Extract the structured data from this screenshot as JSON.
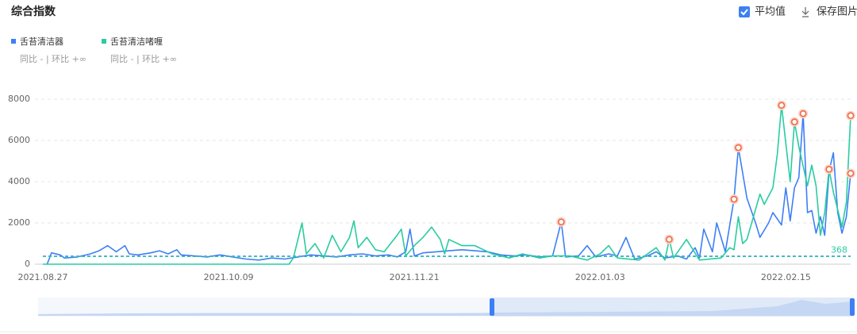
{
  "header": {
    "title": "综合指数",
    "average_toggle": "平均值",
    "save": "保存图片"
  },
  "chart_data": {
    "type": "line",
    "xlim": [
      "2021.08.27",
      "2022.03.02"
    ],
    "xticks": [
      "2021.08.27",
      "2021.10.09",
      "2021.11.21",
      "2022.01.03",
      "2022.02.15"
    ],
    "ylim": [
      0,
      8000
    ],
    "yticks": [
      0,
      2000,
      4000,
      6000,
      8000
    ],
    "grid": true,
    "series": [
      {
        "name": "舌苔清洁器",
        "compare": "同比 - | 环比 +∞",
        "color": "#3d7ff5",
        "average": 390,
        "show_average_label": false,
        "x": [
          "2021.08.28",
          "2021.08.29",
          "2021.08.31",
          "2021.09.01",
          "2021.09.04",
          "2021.09.07",
          "2021.09.09",
          "2021.09.11",
          "2021.09.13",
          "2021.09.15",
          "2021.09.16",
          "2021.09.18",
          "2021.09.21",
          "2021.09.23",
          "2021.09.25",
          "2021.09.27",
          "2021.09.28",
          "2021.10.01",
          "2021.10.04",
          "2021.10.07",
          "2021.10.10",
          "2021.10.13",
          "2021.10.16",
          "2021.10.19",
          "2021.10.22",
          "2021.10.25",
          "2021.10.28",
          "2021.10.31",
          "2021.11.03",
          "2021.11.06",
          "2021.11.09",
          "2021.11.12",
          "2021.11.15",
          "2021.11.17",
          "2021.11.19",
          "2021.11.20",
          "2021.11.21",
          "2021.11.23",
          "2021.11.26",
          "2021.11.29",
          "2021.12.02",
          "2021.12.05",
          "2021.12.08",
          "2021.12.11",
          "2021.12.14",
          "2021.12.17",
          "2021.12.20",
          "2021.12.23",
          "2021.12.25",
          "2021.12.26",
          "2021.12.29",
          "2021.12.31",
          "2022.01.02",
          "2022.01.05",
          "2022.01.07",
          "2022.01.09",
          "2022.01.11",
          "2022.01.14",
          "2022.01.16",
          "2022.01.18",
          "2022.01.21",
          "2022.01.23",
          "2022.01.25",
          "2022.01.26",
          "2022.01.27",
          "2022.01.29",
          "2022.01.30",
          "2022.02.01",
          "2022.02.03",
          "2022.02.04",
          "2022.02.06",
          "2022.02.08",
          "2022.02.09",
          "2022.02.11",
          "2022.02.12",
          "2022.02.14",
          "2022.02.15",
          "2022.02.16",
          "2022.02.17",
          "2022.02.18",
          "2022.02.19",
          "2022.02.20",
          "2022.02.21",
          "2022.02.22",
          "2022.02.23",
          "2022.02.24",
          "2022.02.25",
          "2022.02.26",
          "2022.02.27",
          "2022.02.28",
          "2022.03.01",
          "2022.03.02"
        ],
        "values": [
          0,
          550,
          450,
          300,
          350,
          500,
          650,
          900,
          600,
          900,
          500,
          450,
          550,
          650,
          500,
          700,
          450,
          400,
          350,
          450,
          350,
          250,
          200,
          300,
          250,
          350,
          450,
          400,
          350,
          450,
          500,
          400,
          450,
          350,
          600,
          1700,
          400,
          550,
          600,
          650,
          700,
          650,
          600,
          450,
          400,
          450,
          350,
          400,
          2050,
          350,
          400,
          900,
          350,
          500,
          400,
          1300,
          250,
          400,
          600,
          300,
          400,
          250,
          800,
          300,
          1700,
          600,
          2000,
          600,
          3150,
          5650,
          3200,
          2000,
          1300,
          2000,
          2500,
          1900,
          3700,
          2100,
          3700,
          4200,
          7300,
          2500,
          2600,
          1500,
          2300,
          1400,
          4500,
          5400,
          2500,
          1500,
          2300,
          4400
        ],
        "highlight_x": [
          "2021.12.25",
          "2022.02.03",
          "2022.02.04",
          "2022.02.19",
          "2022.03.02"
        ]
      },
      {
        "name": "舌苔清洁啫喱",
        "compare": "同比 - | 环比 +∞",
        "color": "#29cca0",
        "average": 368,
        "show_average_label": true,
        "x": [
          "2021.08.27",
          "2021.10.23",
          "2021.10.24",
          "2021.10.26",
          "2021.10.27",
          "2021.10.29",
          "2021.10.31",
          "2021.11.02",
          "2021.11.04",
          "2021.11.06",
          "2021.11.07",
          "2021.11.08",
          "2021.11.10",
          "2021.11.12",
          "2021.11.14",
          "2021.11.17",
          "2021.11.18",
          "2021.11.19",
          "2021.11.21",
          "2021.11.23",
          "2021.11.25",
          "2021.11.27",
          "2021.11.28",
          "2021.11.29",
          "2021.12.02",
          "2021.12.05",
          "2021.12.09",
          "2021.12.13",
          "2021.12.16",
          "2021.12.20",
          "2021.12.23",
          "2021.12.27",
          "2021.12.31",
          "2022.01.03",
          "2022.01.05",
          "2022.01.07",
          "2022.01.12",
          "2022.01.16",
          "2022.01.18",
          "2022.01.19",
          "2022.01.20",
          "2022.01.23",
          "2022.01.26",
          "2022.01.31",
          "2022.02.02",
          "2022.02.03",
          "2022.02.04",
          "2022.02.05",
          "2022.02.06",
          "2022.02.09",
          "2022.02.10",
          "2022.02.12",
          "2022.02.13",
          "2022.02.14",
          "2022.02.16",
          "2022.02.17",
          "2022.02.18",
          "2022.02.20",
          "2022.02.21",
          "2022.02.22",
          "2022.02.23",
          "2022.02.24",
          "2022.02.25",
          "2022.02.26",
          "2022.02.28",
          "2022.03.01",
          "2022.03.02"
        ],
        "values": [
          0,
          0,
          300,
          2000,
          500,
          1000,
          300,
          1400,
          600,
          1300,
          2100,
          800,
          1300,
          700,
          600,
          1400,
          1700,
          400,
          900,
          1300,
          1800,
          1200,
          500,
          1200,
          900,
          900,
          500,
          300,
          500,
          300,
          400,
          400,
          200,
          500,
          900,
          300,
          200,
          800,
          200,
          1200,
          300,
          1200,
          200,
          300,
          800,
          700,
          2300,
          1000,
          1200,
          3400,
          2900,
          3700,
          5300,
          7700,
          4000,
          6900,
          5700,
          3800,
          4800,
          3800,
          1400,
          2500,
          4600,
          3500,
          1800,
          3000,
          7200
        ],
        "highlight_x": [
          "2022.01.19",
          "2022.02.14",
          "2022.02.17",
          "2022.02.25",
          "2022.03.02"
        ]
      }
    ]
  }
}
